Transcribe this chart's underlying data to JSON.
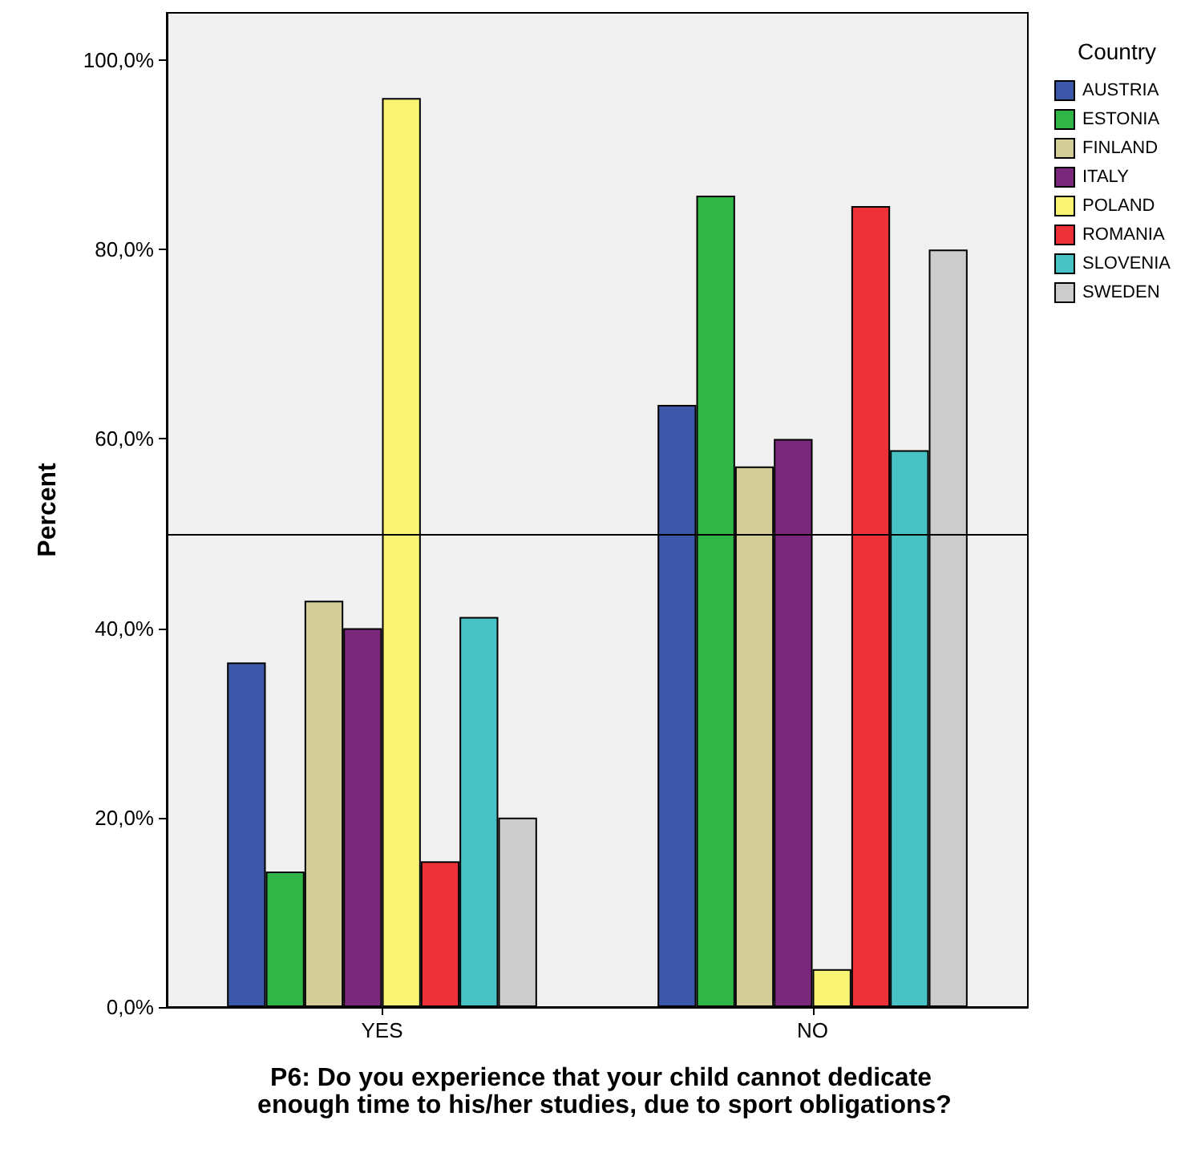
{
  "chart_data": {
    "type": "bar",
    "categories": [
      "YES",
      "NO"
    ],
    "series": [
      {
        "name": "AUSTRIA",
        "color": "#3d58a8",
        "values": [
          36.4,
          63.6
        ]
      },
      {
        "name": "ESTONIA",
        "color": "#2fb647",
        "values": [
          14.3,
          85.7
        ]
      },
      {
        "name": "FINLAND",
        "color": "#d3ce97",
        "values": [
          42.9,
          57.1
        ]
      },
      {
        "name": "ITALY",
        "color": "#79287c",
        "values": [
          40.0,
          60.0
        ]
      },
      {
        "name": "POLAND",
        "color": "#faf474",
        "values": [
          96.0,
          4.0
        ]
      },
      {
        "name": "ROMANIA",
        "color": "#ee3138",
        "values": [
          15.4,
          84.6
        ]
      },
      {
        "name": "SLOVENIA",
        "color": "#48c2c5",
        "values": [
          41.2,
          58.8
        ]
      },
      {
        "name": "SWEDEN",
        "color": "#cccccc",
        "values": [
          20.0,
          80.0
        ]
      }
    ],
    "ylabel": "Percent",
    "xlabel": "P6: Do you experience that your child cannot dedicate enough time to his/her studies, due to sport obligations?",
    "legend_title": "Country",
    "legend": "right",
    "ylim": [
      0,
      105
    ],
    "yticks": [
      {
        "value": 0,
        "label": "0,0%"
      },
      {
        "value": 20,
        "label": "20,0%"
      },
      {
        "value": 40,
        "label": "40,0%"
      },
      {
        "value": 60,
        "label": "60,0%"
      },
      {
        "value": 80,
        "label": "80,0%"
      },
      {
        "value": 100,
        "label": "100,0%"
      }
    ],
    "ref_lines": [
      {
        "axis": "y",
        "value": 50
      }
    ],
    "grid": false
  }
}
